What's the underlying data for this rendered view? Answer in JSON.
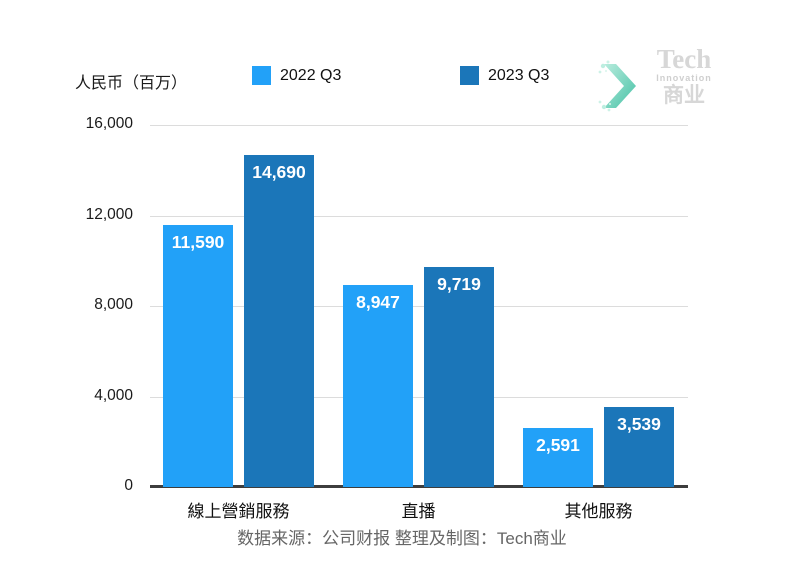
{
  "chart_data": {
    "type": "bar",
    "unit_label": "人民币（百万）",
    "categories": [
      "線上營銷服務",
      "直播",
      "其他服務"
    ],
    "series": [
      {
        "name": "2022 Q3",
        "color": "#22A1F8",
        "values": [
          11590,
          8947,
          2591
        ],
        "value_labels": [
          "11,590",
          "8,947",
          "2,591"
        ]
      },
      {
        "name": "2023 Q3",
        "color": "#1B76B9",
        "values": [
          14690,
          9719,
          3539
        ],
        "value_labels": [
          "14,690",
          "9,719",
          "3,539"
        ]
      }
    ],
    "ylim": [
      0,
      16000
    ],
    "yticks": [
      0,
      4000,
      8000,
      12000,
      16000
    ],
    "ytick_labels": [
      "0",
      "4,000",
      "8,000",
      "12,000",
      "16,000"
    ],
    "grid": "horizontal",
    "legend_position": "top"
  },
  "logo": {
    "brand_top": "Tech",
    "brand_mid": "Innovation",
    "brand_bottom": "商业",
    "chevron_color_light": "#9fe3d2",
    "chevron_color_dark": "#46c1a6"
  },
  "footer": {
    "text": "数据来源：公司财报 整理及制图：Tech商业"
  }
}
